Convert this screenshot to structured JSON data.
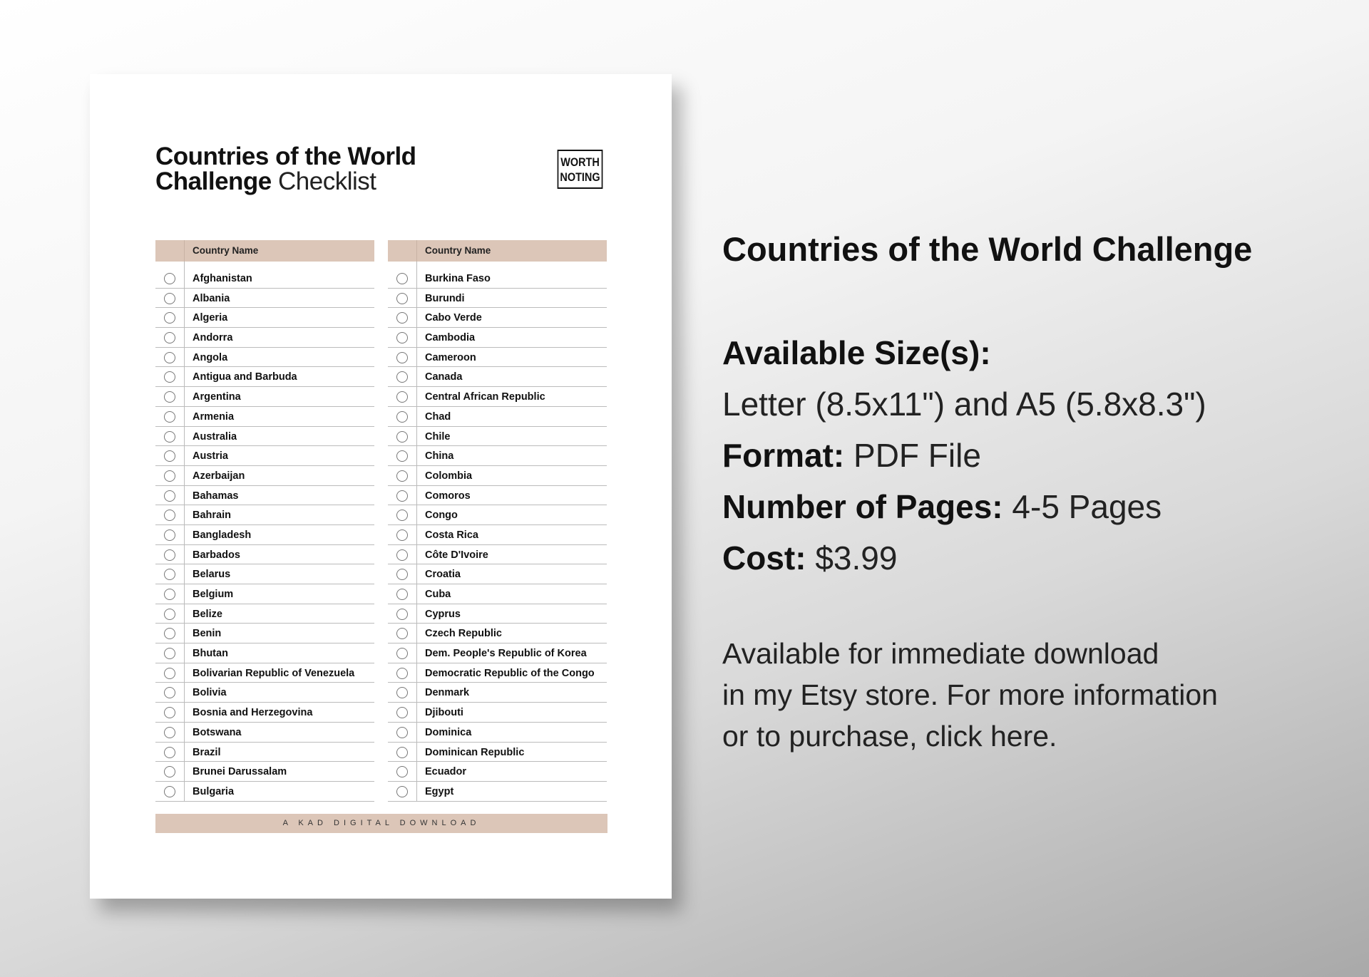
{
  "document": {
    "title_bold_1": "Countries of the World",
    "title_bold_2": "Challenge",
    "title_light": "Checklist",
    "logo_line1": "WORTH",
    "logo_line2": "NOTING",
    "column_header": "Country Name",
    "left_column": [
      "Afghanistan",
      "Albania",
      "Algeria",
      "Andorra",
      "Angola",
      "Antigua and Barbuda",
      "Argentina",
      "Armenia",
      "Australia",
      "Austria",
      "Azerbaijan",
      "Bahamas",
      "Bahrain",
      "Bangladesh",
      "Barbados",
      "Belarus",
      "Belgium",
      "Belize",
      "Benin",
      "Bhutan",
      "Bolivarian Republic of Venezuela",
      "Bolivia",
      "Bosnia and Herzegovina",
      "Botswana",
      "Brazil",
      "Brunei Darussalam",
      "Bulgaria"
    ],
    "right_column": [
      "Burkina Faso",
      "Burundi",
      "Cabo Verde",
      "Cambodia",
      "Cameroon",
      "Canada",
      "Central African Republic",
      "Chad",
      "Chile",
      "China",
      "Colombia",
      "Comoros",
      "Congo",
      "Costa Rica",
      "Côte D'Ivoire",
      "Croatia",
      "Cuba",
      "Cyprus",
      "Czech Republic",
      "Dem. People's Republic of Korea",
      "Democratic Republic of the Congo",
      "Denmark",
      "Djibouti",
      "Dominica",
      "Dominican Republic",
      "Ecuador",
      "Egypt"
    ],
    "footer": "A KAD DIGITAL DOWNLOAD"
  },
  "info": {
    "heading": "Countries of the World Challenge",
    "sizes_label": "Available Size(s):",
    "sizes_value": "Letter (8.5x11\") and A5 (5.8x8.3\")",
    "format_label": "Format:",
    "format_value": "PDF File",
    "pages_label": "Number of Pages:",
    "pages_value": "4-5 Pages",
    "cost_label": "Cost:",
    "cost_value": "$3.99",
    "description_1": "Available for immediate download",
    "description_2": "in my Etsy store. For more information",
    "description_3": "or to purchase, click here."
  },
  "colors": {
    "accent": "#dcc6b8"
  }
}
